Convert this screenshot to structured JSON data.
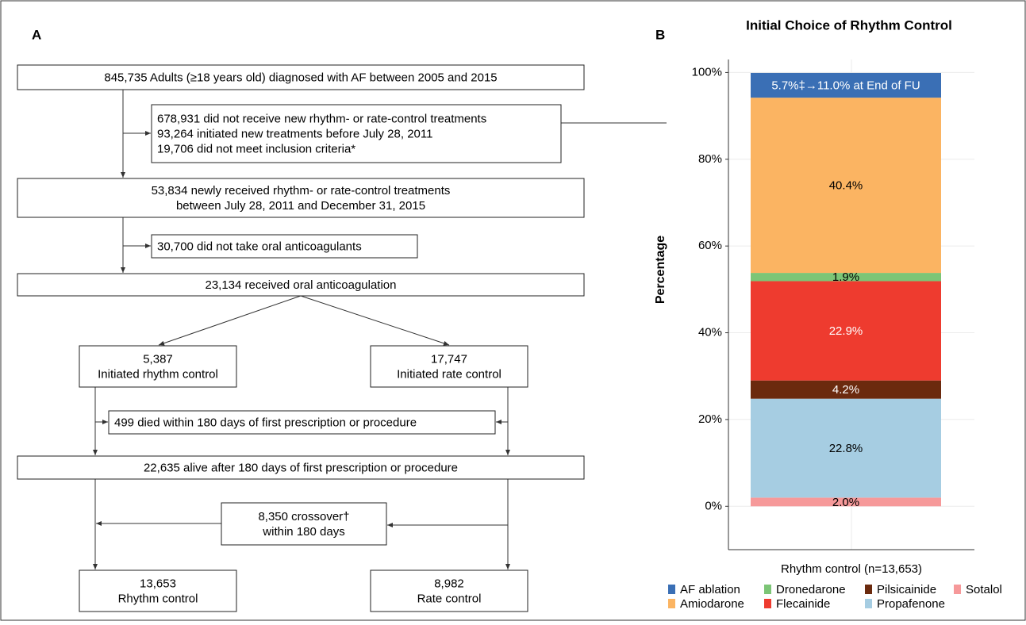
{
  "panel_a": {
    "label": "A",
    "nodes": [
      {
        "lines": [
          "845,735 Adults (≥18 years old) diagnosed with AF between 2005 and 2015"
        ]
      },
      {
        "lines": [
          "678,931 did not receive new rhythm- or rate-control treatments",
          "93,264 initiated new treatments before July 28, 2011",
          "19,706 did not meet inclusion criteria*"
        ]
      },
      {
        "lines": [
          "53,834 newly received rhythm- or rate-control treatments",
          "between July 28, 2011 and December 31, 2015"
        ]
      },
      {
        "lines": [
          "30,700 did not take oral anticoagulants"
        ]
      },
      {
        "lines": [
          "23,134 received oral anticoagulation"
        ]
      },
      {
        "lines": [
          "5,387",
          "Initiated rhythm control"
        ]
      },
      {
        "lines": [
          "17,747",
          "Initiated rate control"
        ]
      },
      {
        "lines": [
          "499 died within 180 days of first prescription or procedure"
        ]
      },
      {
        "lines": [
          "22,635 alive after 180 days of first prescription or procedure"
        ]
      },
      {
        "lines": [
          "8,350 crossover†",
          "within 180 days"
        ]
      },
      {
        "lines": [
          "13,653",
          "Rhythm control"
        ]
      },
      {
        "lines": [
          "8,982",
          "Rate control"
        ]
      }
    ]
  },
  "chart_data": {
    "type": "stacked_bar",
    "panel_label": "B",
    "title": "Initial Choice of Rhythm Control",
    "y_label": "Percentage",
    "categories": [
      "Rhythm control (n=13,653)"
    ],
    "ylim": [
      -10,
      103
    ],
    "yticks": [
      {
        "value": 0,
        "label": "0%"
      },
      {
        "value": 20,
        "label": "20%"
      },
      {
        "value": 40,
        "label": "40%"
      },
      {
        "value": 60,
        "label": "60%"
      },
      {
        "value": 80,
        "label": "80%"
      },
      {
        "value": 100,
        "label": "100%"
      }
    ],
    "grid": true,
    "series": [
      {
        "name": "AF ablation",
        "color": "#3a6fb5",
        "label_color": "#ffffff",
        "values": [
          5.7
        ],
        "value_labels": [
          "5.7%‡→11.0% at End of FU"
        ]
      },
      {
        "name": "Amiodarone",
        "color": "#fbb462",
        "label_color": "#000000",
        "values": [
          40.4
        ],
        "value_labels": [
          "40.4%"
        ]
      },
      {
        "name": "Dronedarone",
        "color": "#7cc576",
        "label_color": "#000000",
        "values": [
          1.9
        ],
        "value_labels": [
          "1.9%"
        ]
      },
      {
        "name": "Flecainide",
        "color": "#ee3b2f",
        "label_color": "#ffffff",
        "values": [
          22.9
        ],
        "value_labels": [
          "22.9%"
        ]
      },
      {
        "name": "Pilsicainide",
        "color": "#6b2a0e",
        "label_color": "#ffffff",
        "values": [
          4.2
        ],
        "value_labels": [
          "4.2%"
        ]
      },
      {
        "name": "Propafenone",
        "color": "#a6cde2",
        "label_color": "#000000",
        "values": [
          22.8
        ],
        "value_labels": [
          "22.8%"
        ]
      },
      {
        "name": "Sotalol",
        "color": "#f6999a",
        "label_color": "#000000",
        "values": [
          2.0
        ],
        "value_labels": [
          "2.0%"
        ]
      }
    ]
  }
}
